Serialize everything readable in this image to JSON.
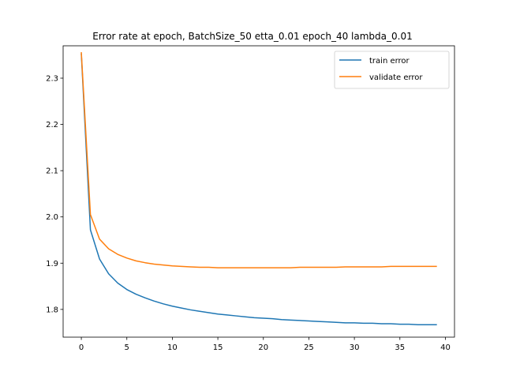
{
  "chart_data": {
    "type": "line",
    "title": "Error rate at epoch, BatchSize_50  etta_0.01 epoch_40 lambda_0.01",
    "xlabel": "",
    "ylabel": "",
    "xlim": [
      -2,
      41
    ],
    "ylim": [
      1.74,
      2.37
    ],
    "xticks": [
      0,
      5,
      10,
      15,
      20,
      25,
      30,
      35,
      40
    ],
    "yticks": [
      1.8,
      1.9,
      2.0,
      2.1,
      2.2,
      2.3
    ],
    "ytick_labels": [
      "1.8",
      "1.9",
      "2.0",
      "2.1",
      "2.2",
      "2.3"
    ],
    "grid": false,
    "legend_position": "top-right",
    "x": [
      0,
      1,
      2,
      3,
      4,
      5,
      6,
      7,
      8,
      9,
      10,
      11,
      12,
      13,
      14,
      15,
      16,
      17,
      18,
      19,
      20,
      21,
      22,
      23,
      24,
      25,
      26,
      27,
      28,
      29,
      30,
      31,
      32,
      33,
      34,
      35,
      36,
      37,
      38,
      39
    ],
    "series": [
      {
        "name": "train error",
        "color": "#1f77b4",
        "values": [
          2.352,
          1.972,
          1.909,
          1.877,
          1.857,
          1.843,
          1.833,
          1.825,
          1.818,
          1.812,
          1.807,
          1.803,
          1.799,
          1.796,
          1.793,
          1.79,
          1.788,
          1.786,
          1.784,
          1.782,
          1.781,
          1.78,
          1.778,
          1.777,
          1.776,
          1.775,
          1.774,
          1.773,
          1.772,
          1.771,
          1.771,
          1.77,
          1.77,
          1.769,
          1.769,
          1.768,
          1.768,
          1.767,
          1.767,
          1.767
        ]
      },
      {
        "name": "validate error",
        "color": "#ff7f0e",
        "values": [
          2.355,
          2.005,
          1.952,
          1.931,
          1.919,
          1.911,
          1.905,
          1.901,
          1.898,
          1.896,
          1.894,
          1.893,
          1.892,
          1.891,
          1.891,
          1.89,
          1.89,
          1.89,
          1.89,
          1.89,
          1.89,
          1.89,
          1.89,
          1.89,
          1.891,
          1.891,
          1.891,
          1.891,
          1.891,
          1.892,
          1.892,
          1.892,
          1.892,
          1.892,
          1.893,
          1.893,
          1.893,
          1.893,
          1.893,
          1.893
        ]
      }
    ]
  }
}
